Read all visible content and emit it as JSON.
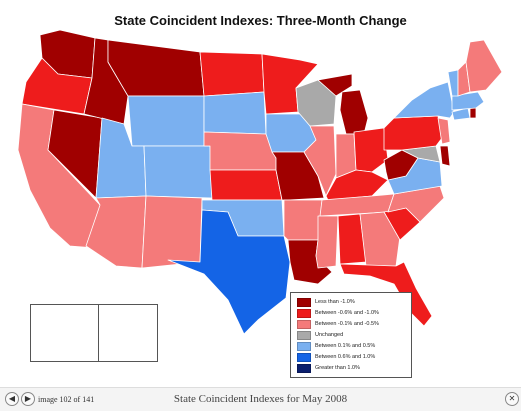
{
  "title": "State Coincident Indexes: Three-Month Change",
  "colors": {
    "lt_neg1": "#a00000",
    "neg08_neg10": "#ee1c1c",
    "neg01_neg05": "#f47a7a",
    "unchanged": "#a9a9a9",
    "pos01_05": "#7ab0f0",
    "pos06_10": "#1464e6",
    "gt_1": "#0a1f6e"
  },
  "legend": [
    {
      "label": "Less than -1.0%",
      "color_key": "lt_neg1"
    },
    {
      "label": "Between -0.6% and -1.0%",
      "color_key": "neg08_neg10"
    },
    {
      "label": "Between -0.1% and -0.5%",
      "color_key": "neg01_neg05"
    },
    {
      "label": "Unchanged",
      "color_key": "unchanged"
    },
    {
      "label": "Between 0.1% and 0.5%",
      "color_key": "pos01_05"
    },
    {
      "label": "Between 0.6% and 1.0%",
      "color_key": "pos06_10"
    },
    {
      "label": "Greater than 1.0%",
      "color_key": "gt_1"
    }
  ],
  "states": {
    "WA": "lt_neg1",
    "OR": "neg08_neg10",
    "CA": "neg01_neg05",
    "NV": "lt_neg1",
    "ID": "lt_neg1",
    "MT": "lt_neg1",
    "WY": "pos01_05",
    "UT": "pos01_05",
    "AZ": "neg01_neg05",
    "CO": "pos01_05",
    "NM": "neg01_neg05",
    "ND": "neg08_neg10",
    "SD": "pos01_05",
    "NE": "neg01_neg05",
    "KS": "neg08_neg10",
    "OK": "pos01_05",
    "TX": "pos06_10",
    "MN": "neg08_neg10",
    "IA": "pos01_05",
    "MO": "lt_neg1",
    "AR": "neg01_neg05",
    "LA": "lt_neg1",
    "WI": "unchanged",
    "IL": "neg01_neg05",
    "MI": "lt_neg1",
    "IN": "neg01_neg05",
    "OH": "neg08_neg10",
    "KY": "neg08_neg10",
    "TN": "neg01_neg05",
    "MS": "neg01_neg05",
    "AL": "neg08_neg10",
    "GA": "neg01_neg05",
    "FL": "neg08_neg10",
    "SC": "neg08_neg10",
    "NC": "neg01_neg05",
    "VA": "pos01_05",
    "WV": "lt_neg1",
    "MD": "unchanged",
    "DE": "lt_neg1",
    "PA": "neg08_neg10",
    "NY": "pos01_05",
    "NJ": "neg01_neg05",
    "CT": "pos01_05",
    "RI": "lt_neg1",
    "MA": "pos01_05",
    "VT": "pos01_05",
    "NH": "neg01_neg05",
    "ME": "neg01_neg05",
    "AK": "neg01_neg05",
    "HI": "unchanged"
  },
  "footer": {
    "counter": "image 102 of 141",
    "caption": "State Coincident Indexes for May 2008",
    "prev_icon": "prev-arrow-icon",
    "next_icon": "next-arrow-icon",
    "close_icon": "close-icon"
  }
}
